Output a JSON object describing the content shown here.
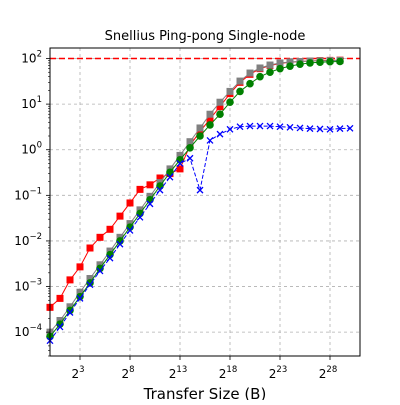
{
  "chart_data": {
    "type": "line",
    "title": "Snellius Ping-pong Single-node",
    "xlabel": "Transfer Size (B)",
    "ylabel": "",
    "x_scale": "log2",
    "y_scale": "log10",
    "xlim": [
      1,
      2147483648
    ],
    "ylim": [
      3e-05,
      170
    ],
    "x_ticks": [
      {
        "base": "2",
        "exp": "3",
        "value": 8
      },
      {
        "base": "2",
        "exp": "8",
        "value": 256
      },
      {
        "base": "2",
        "exp": "13",
        "value": 8192
      },
      {
        "base": "2",
        "exp": "18",
        "value": 262144
      },
      {
        "base": "2",
        "exp": "23",
        "value": 8388608
      },
      {
        "base": "2",
        "exp": "28",
        "value": 268435456
      }
    ],
    "y_ticks": [
      {
        "base": "10",
        "exp": "2",
        "value": 100
      },
      {
        "base": "10",
        "exp": "1",
        "value": 10
      },
      {
        "base": "10",
        "exp": "0",
        "value": 1
      },
      {
        "base": "10",
        "exp": "−1",
        "value": 0.1
      },
      {
        "base": "10",
        "exp": "−2",
        "value": 0.01
      },
      {
        "base": "10",
        "exp": "−3",
        "value": 0.001
      },
      {
        "base": "10",
        "exp": "−4",
        "value": 0.0001
      }
    ],
    "grid": true,
    "reference_line": {
      "y": 100,
      "color": "#ff0000",
      "style": "dashed"
    },
    "series": [
      {
        "color": "#ff0000",
        "marker": "square",
        "line": "solid",
        "x": [
          1,
          2,
          4,
          8,
          16,
          32,
          64,
          128,
          256,
          512,
          1024,
          2048,
          4096,
          8192,
          16384,
          32768,
          65536,
          131072,
          262144,
          524288,
          1048576,
          2097152,
          4194304,
          8388608,
          16777216,
          33554432,
          67108864,
          134217728,
          268435456,
          536870912
        ],
        "y": [
          0.00035,
          0.00055,
          0.0014,
          0.0027,
          0.007,
          0.012,
          0.018,
          0.035,
          0.068,
          0.135,
          0.17,
          0.24,
          0.3,
          0.38,
          1.25,
          2.5,
          4.7,
          8.8,
          17,
          30,
          45,
          60,
          70,
          78,
          83,
          86,
          88,
          90,
          91,
          92
        ]
      },
      {
        "color": "#808080",
        "marker": "square",
        "line": "solid",
        "x": [
          1,
          2,
          4,
          8,
          16,
          32,
          64,
          128,
          256,
          512,
          1024,
          2048,
          4096,
          8192,
          16384,
          32768,
          65536,
          131072,
          262144,
          524288,
          1048576,
          2097152,
          4194304,
          8388608,
          16777216,
          33554432,
          67108864,
          134217728,
          268435456,
          536870912
        ],
        "y": [
          0.0001,
          0.00018,
          0.00036,
          0.00075,
          0.0015,
          0.003,
          0.006,
          0.012,
          0.024,
          0.048,
          0.095,
          0.19,
          0.38,
          0.75,
          1.5,
          3,
          6,
          11,
          19,
          32,
          48,
          62,
          72,
          80,
          84,
          86,
          88,
          89,
          90,
          91
        ]
      },
      {
        "color": "#008000",
        "marker": "circle",
        "line": "solid",
        "x": [
          1,
          2,
          4,
          8,
          16,
          32,
          64,
          128,
          256,
          512,
          1024,
          2048,
          4096,
          8192,
          16384,
          32768,
          65536,
          131072,
          262144,
          524288,
          1048576,
          2097152,
          4194304,
          8388608,
          16777216,
          33554432,
          67108864,
          134217728,
          268435456,
          536870912
        ],
        "y": [
          8e-05,
          0.00015,
          0.0003,
          0.0006,
          0.0012,
          0.0025,
          0.005,
          0.01,
          0.02,
          0.04,
          0.08,
          0.16,
          0.32,
          0.6,
          1.1,
          2,
          3.5,
          6,
          11,
          19,
          28,
          40,
          50,
          60,
          68,
          75,
          80,
          83,
          85,
          86
        ]
      },
      {
        "color": "#0000ff",
        "marker": "x",
        "line": "dashed",
        "x": [
          1,
          2,
          4,
          8,
          16,
          32,
          64,
          128,
          256,
          512,
          1024,
          2048,
          4096,
          8192,
          16384,
          32768,
          65536,
          131072,
          262144,
          524288,
          1048576,
          2097152,
          4194304,
          8388608,
          16777216,
          33554432,
          67108864,
          134217728,
          268435456,
          536870912,
          1073741824
        ],
        "y": [
          6.5e-05,
          0.00013,
          0.00027,
          0.00055,
          0.0011,
          0.0022,
          0.0042,
          0.0085,
          0.017,
          0.033,
          0.065,
          0.13,
          0.25,
          0.5,
          0.65,
          0.13,
          1.6,
          2.2,
          2.8,
          3.2,
          3.3,
          3.3,
          3.3,
          3.2,
          3.1,
          3,
          2.9,
          2.85,
          2.8,
          2.9,
          2.95
        ]
      }
    ]
  }
}
